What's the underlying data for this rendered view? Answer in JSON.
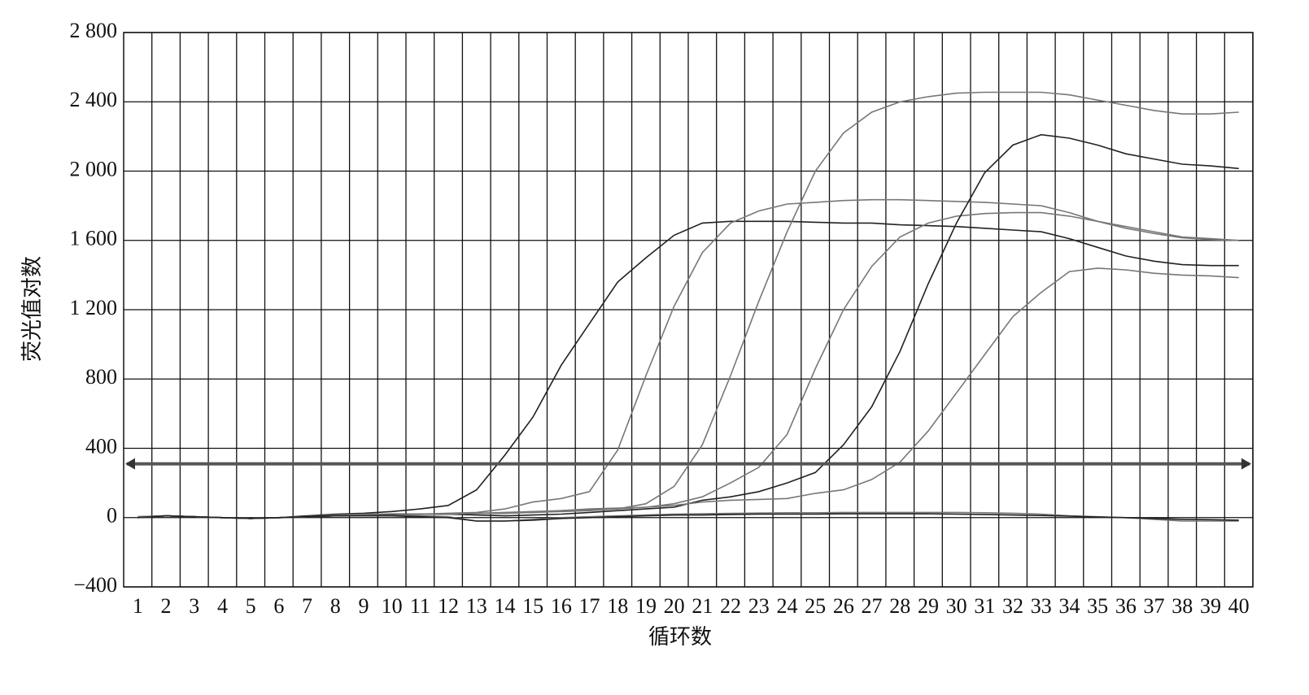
{
  "chart_data": {
    "type": "line",
    "x_label": "循环数",
    "y_label": "荧光值对数",
    "x": [
      1,
      2,
      3,
      4,
      5,
      6,
      7,
      8,
      9,
      10,
      11,
      12,
      13,
      14,
      15,
      16,
      17,
      18,
      19,
      20,
      21,
      22,
      23,
      24,
      25,
      26,
      27,
      28,
      29,
      30,
      31,
      32,
      33,
      34,
      35,
      36,
      37,
      38,
      39,
      40
    ],
    "xlim": [
      0.5,
      40.5
    ],
    "xticks": [
      1,
      2,
      3,
      4,
      5,
      6,
      7,
      8,
      9,
      10,
      11,
      12,
      13,
      14,
      15,
      16,
      17,
      18,
      19,
      20,
      21,
      22,
      23,
      24,
      25,
      26,
      27,
      28,
      29,
      30,
      31,
      32,
      33,
      34,
      35,
      36,
      37,
      38,
      39,
      40
    ],
    "ylim": [
      -400,
      2800
    ],
    "yticks": [
      {
        "value": -400,
        "label": "−400"
      },
      0,
      400,
      800,
      {
        "value": 1200,
        "label": "1 200"
      },
      {
        "value": 1600,
        "label": "1 600"
      },
      {
        "value": 2000,
        "label": "2 000"
      },
      {
        "value": 2400,
        "label": "2 400"
      },
      {
        "value": 2800,
        "label": "2 800"
      }
    ],
    "grid": true,
    "threshold": 310,
    "series": [
      {
        "color": "#222222",
        "values": [
          5,
          10,
          5,
          0,
          -5,
          0,
          10,
          20,
          25,
          35,
          50,
          70,
          160,
          360,
          580,
          880,
          1120,
          1360,
          1500,
          1630,
          1700,
          1710,
          1710,
          1710,
          1705,
          1700,
          1700,
          1690,
          1685,
          1680,
          1670,
          1660,
          1650,
          1610,
          1560,
          1510,
          1480,
          1460,
          1455,
          1455
        ]
      },
      {
        "color": "#777777",
        "values": [
          0,
          10,
          5,
          0,
          -5,
          0,
          5,
          15,
          20,
          20,
          20,
          25,
          30,
          50,
          90,
          110,
          150,
          390,
          820,
          1220,
          1530,
          1700,
          1770,
          1810,
          1820,
          1830,
          1835,
          1835,
          1830,
          1825,
          1820,
          1810,
          1800,
          1760,
          1710,
          1670,
          1640,
          1615,
          1605,
          1600
        ]
      },
      {
        "color": "#777777",
        "values": [
          0,
          10,
          5,
          0,
          -5,
          0,
          5,
          10,
          15,
          15,
          20,
          20,
          25,
          30,
          35,
          40,
          45,
          50,
          80,
          180,
          420,
          820,
          1250,
          1650,
          2000,
          2220,
          2340,
          2400,
          2430,
          2450,
          2455,
          2455,
          2455,
          2440,
          2410,
          2380,
          2350,
          2330,
          2330,
          2340
        ]
      },
      {
        "color": "#777777",
        "values": [
          0,
          10,
          5,
          0,
          -5,
          0,
          5,
          10,
          15,
          15,
          20,
          20,
          25,
          25,
          30,
          35,
          40,
          50,
          60,
          80,
          120,
          200,
          290,
          480,
          860,
          1200,
          1450,
          1620,
          1700,
          1740,
          1755,
          1760,
          1760,
          1740,
          1710,
          1680,
          1650,
          1620,
          1610,
          1600
        ]
      },
      {
        "color": "#222222",
        "values": [
          0,
          10,
          5,
          0,
          -5,
          0,
          5,
          10,
          15,
          20,
          20,
          20,
          15,
          10,
          15,
          20,
          30,
          40,
          50,
          60,
          100,
          120,
          150,
          200,
          260,
          420,
          640,
          960,
          1350,
          1700,
          1990,
          2150,
          2210,
          2190,
          2150,
          2100,
          2070,
          2040,
          2030,
          2015
        ]
      },
      {
        "color": "#777777",
        "values": [
          0,
          10,
          5,
          0,
          -5,
          0,
          5,
          10,
          15,
          15,
          20,
          20,
          25,
          25,
          30,
          40,
          50,
          55,
          60,
          70,
          90,
          100,
          105,
          110,
          140,
          160,
          220,
          320,
          500,
          720,
          940,
          1160,
          1300,
          1420,
          1440,
          1430,
          1410,
          1400,
          1395,
          1385
        ]
      },
      {
        "color": "#777777",
        "values": [
          5,
          10,
          5,
          0,
          -5,
          0,
          5,
          10,
          15,
          15,
          10,
          5,
          -20,
          -20,
          -10,
          0,
          5,
          10,
          15,
          20,
          22,
          24,
          26,
          28,
          28,
          30,
          30,
          30,
          30,
          30,
          28,
          25,
          20,
          10,
          5,
          0,
          -10,
          -20,
          -20,
          -20
        ]
      },
      {
        "color": "#222222",
        "values": [
          0,
          10,
          5,
          0,
          -5,
          0,
          5,
          10,
          10,
          10,
          5,
          0,
          -20,
          -20,
          -15,
          -5,
          0,
          5,
          10,
          15,
          15,
          18,
          20,
          20,
          20,
          22,
          22,
          22,
          22,
          20,
          18,
          15,
          12,
          8,
          3,
          0,
          -5,
          -10,
          -12,
          -15
        ]
      }
    ]
  }
}
